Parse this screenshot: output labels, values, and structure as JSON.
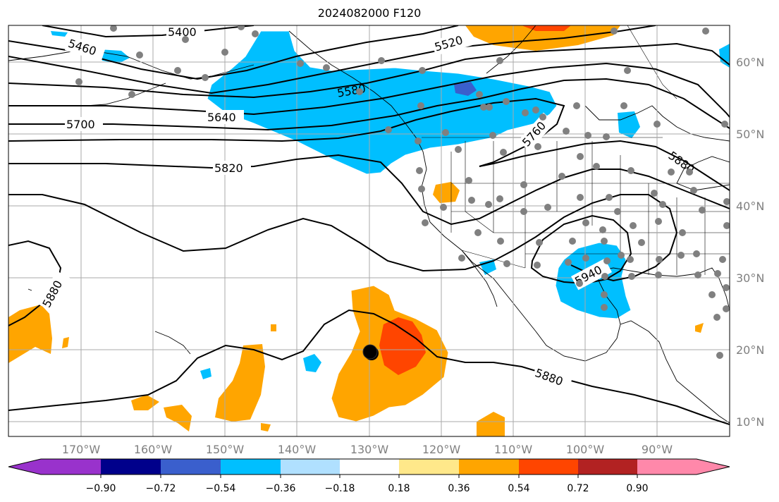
{
  "title": "2024082000 F120",
  "longitude_labels": [
    "170°W",
    "160°W",
    "150°W",
    "140°W",
    "130°W",
    "120°W",
    "110°W",
    "100°W",
    "90°W"
  ],
  "latitude_labels": [
    "60°N",
    "50°N",
    "40°N",
    "30°N",
    "20°N",
    "10°N"
  ],
  "contour_labels": [
    "5400",
    "5460",
    "5520",
    "5580",
    "5640",
    "5700",
    "5760",
    "5820",
    "5880",
    "5880",
    "5880",
    "5940"
  ],
  "colorbar": {
    "tick_labels": [
      "−0.90",
      "−0.72",
      "−0.54",
      "−0.36",
      "−0.18",
      "0.18",
      "0.36",
      "0.54",
      "0.72",
      "0.90"
    ],
    "colors": [
      "#9932cc",
      "#00008b",
      "#3a5fcd",
      "#00bfff",
      "#b0e0ff",
      "#ffffff",
      "#ffe88a",
      "#ffa500",
      "#ff4500",
      "#b22222",
      "#ff88aa"
    ]
  },
  "colors": {
    "strong_negative": "#3a5fcd",
    "negative": "#00bfff",
    "positive": "#ffa500",
    "strong_positive": "#ff4500",
    "contour": "#000000",
    "stations": "#808080"
  }
}
